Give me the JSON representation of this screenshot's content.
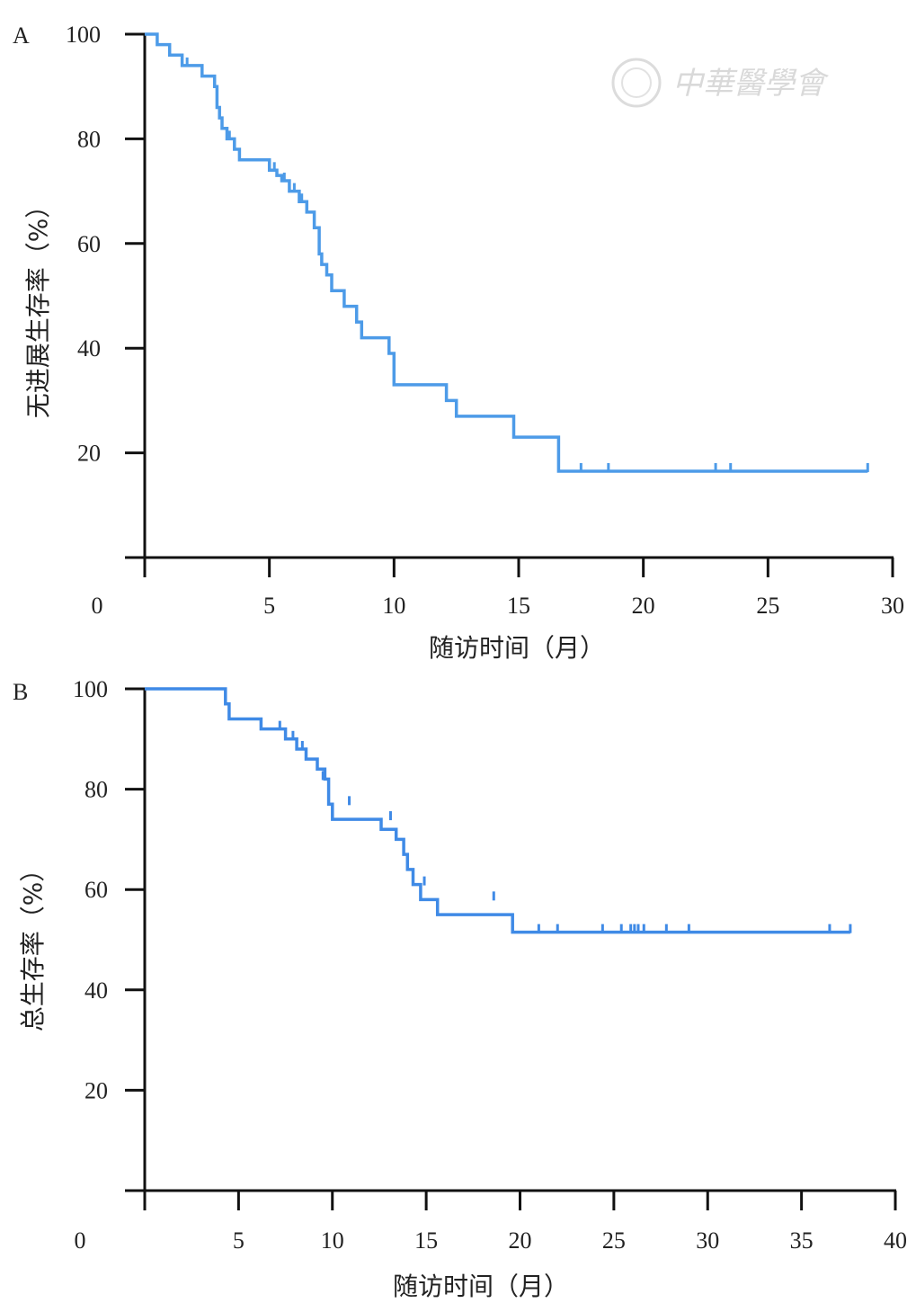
{
  "watermark": {
    "text": "中華醫學會"
  },
  "chart_data": [
    {
      "type": "line",
      "panel_label": "A",
      "xlabel": "随访时间（月）",
      "ylabel": "无进展生存率（%）",
      "xlim": [
        0,
        30
      ],
      "ylim": [
        0,
        100
      ],
      "x_ticks": [
        "0",
        "5",
        "10",
        "15",
        "20",
        "25",
        "30"
      ],
      "y_ticks": [
        "20",
        "40",
        "60",
        "80",
        "100"
      ],
      "color": "#4d9be8",
      "step_x": [
        0,
        0.5,
        0.5,
        1.0,
        1.0,
        1.5,
        1.5,
        2.3,
        2.3,
        2.8,
        2.8,
        2.9,
        2.9,
        3.0,
        3.0,
        3.1,
        3.1,
        3.3,
        3.3,
        3.6,
        3.6,
        3.8,
        3.8,
        5.0,
        5.0,
        5.3,
        5.3,
        5.5,
        5.5,
        5.8,
        5.8,
        6.2,
        6.2,
        6.5,
        6.5,
        6.8,
        6.8,
        7.0,
        7.0,
        7.1,
        7.1,
        7.3,
        7.3,
        7.5,
        7.5,
        8.0,
        8.0,
        8.5,
        8.5,
        8.7,
        8.7,
        9.8,
        9.8,
        10.0,
        10.0,
        12.1,
        12.1,
        12.5,
        12.5,
        14.8,
        14.8,
        16.6,
        16.6,
        29.0
      ],
      "step_y": [
        100,
        100,
        98,
        98,
        96,
        96,
        94,
        94,
        92,
        92,
        90,
        90,
        86,
        86,
        84,
        84,
        82,
        82,
        80,
        80,
        78,
        78,
        76,
        76,
        74,
        74,
        73,
        73,
        72,
        72,
        70,
        70,
        68,
        68,
        66,
        66,
        63,
        63,
        58,
        58,
        56,
        56,
        54,
        54,
        51,
        51,
        48,
        48,
        45,
        45,
        42,
        42,
        39,
        39,
        33,
        33,
        30,
        30,
        27,
        27,
        23,
        23,
        16.5,
        16.5
      ],
      "censor_x": [
        1.7,
        3.4,
        3.6,
        5.2,
        5.6,
        6.0,
        6.3,
        7.1,
        9.8,
        17.5,
        18.6,
        22.9,
        23.5,
        29.0
      ],
      "censor_y": [
        94,
        80,
        78,
        74,
        72,
        70,
        68,
        56,
        39,
        16.5,
        16.5,
        16.5,
        16.5,
        16.5
      ]
    },
    {
      "type": "line",
      "panel_label": "B",
      "xlabel": "随访时间（月）",
      "ylabel": "总生存率（%）",
      "xlim": [
        0,
        40
      ],
      "ylim": [
        0,
        100
      ],
      "x_ticks": [
        "0",
        "5",
        "10",
        "15",
        "20",
        "25",
        "30",
        "35",
        "40"
      ],
      "y_ticks": [
        "20",
        "40",
        "60",
        "80",
        "100"
      ],
      "color": "#3f8ae6",
      "step_x": [
        0,
        4.3,
        4.3,
        4.5,
        4.5,
        6.2,
        6.2,
        7.5,
        7.5,
        8.1,
        8.1,
        8.6,
        8.6,
        9.2,
        9.2,
        9.6,
        9.6,
        9.8,
        9.8,
        10.0,
        10.0,
        12.6,
        12.6,
        13.4,
        13.4,
        13.8,
        13.8,
        14.0,
        14.0,
        14.3,
        14.3,
        14.7,
        14.7,
        15.6,
        15.6,
        19.6,
        19.6,
        20.7,
        20.7,
        37.6
      ],
      "step_y": [
        100,
        100,
        97,
        97,
        94,
        94,
        92,
        92,
        90,
        90,
        88,
        88,
        86,
        86,
        84,
        84,
        82,
        82,
        77,
        77,
        74,
        74,
        72,
        72,
        70,
        70,
        67,
        67,
        64,
        64,
        61,
        61,
        58,
        58,
        55,
        55,
        51.5,
        51.5,
        51.5,
        51.5
      ],
      "censor_x": [
        7.2,
        7.9,
        8.4,
        9.5,
        10.9,
        13.1,
        14.9,
        18.6,
        21.0,
        22.0,
        24.4,
        25.4,
        25.9,
        26.1,
        26.3,
        26.6,
        27.8,
        29.0,
        36.5,
        37.6
      ],
      "censor_y": [
        92,
        90,
        88,
        82,
        77,
        74,
        61,
        58,
        51.5,
        51.5,
        51.5,
        51.5,
        51.5,
        51.5,
        51.5,
        51.5,
        51.5,
        51.5,
        51.5,
        51.5
      ]
    }
  ]
}
